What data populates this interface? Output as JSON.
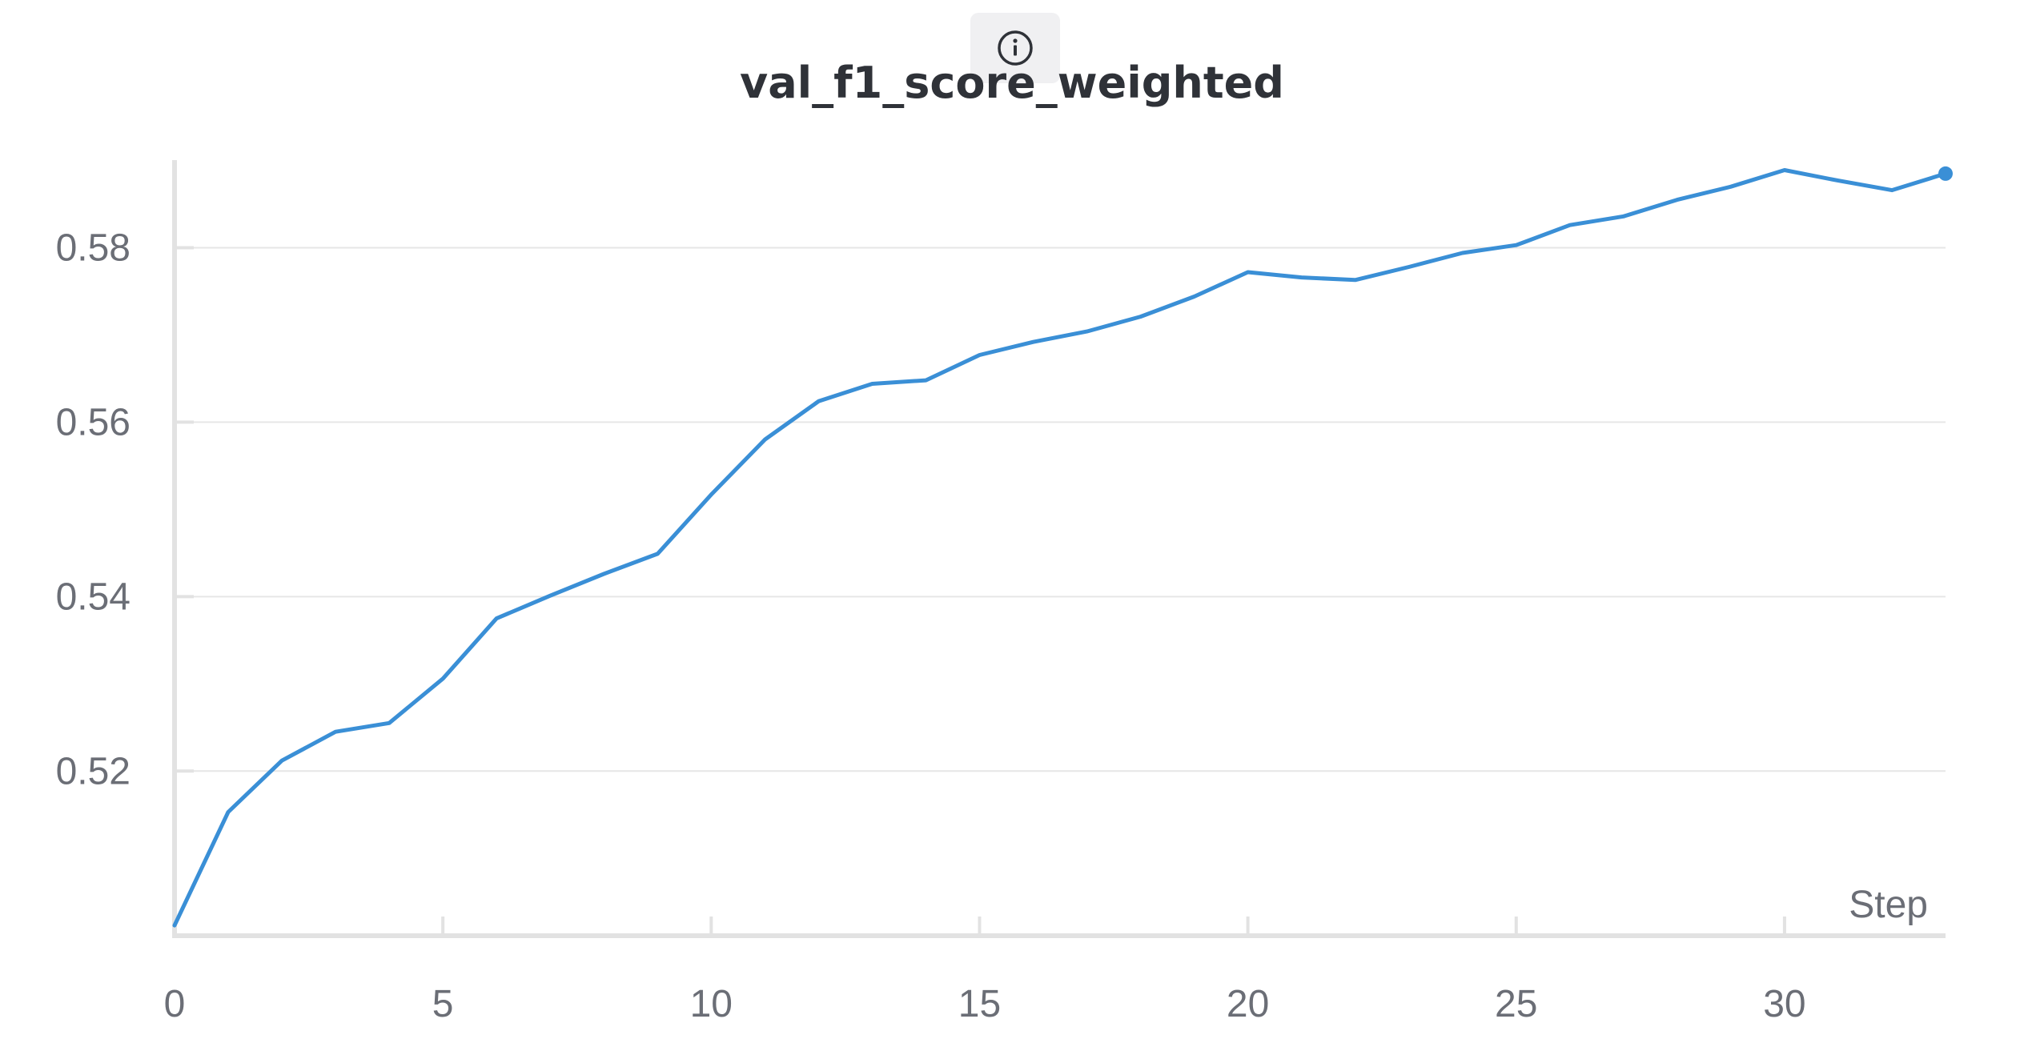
{
  "header": {
    "info_icon": "info-circle-icon"
  },
  "chart_data": {
    "type": "line",
    "title": "val_f1_score_weighted",
    "xlabel": "Step",
    "ylabel": "",
    "xlim": [
      0,
      33
    ],
    "ylim": [
      0.5013,
      0.5895
    ],
    "grid": true,
    "x_ticks": [
      0,
      5,
      10,
      15,
      20,
      25,
      30
    ],
    "y_ticks": [
      0.52,
      0.54,
      0.56,
      0.58
    ],
    "y_tick_labels": [
      "0.52",
      "0.54",
      "0.56",
      "0.58"
    ],
    "x_tick_labels": [
      "0",
      "5",
      "10",
      "15",
      "20",
      "25",
      "30"
    ],
    "colors": {
      "line": "#3a8fd6",
      "grid": "#e6e6e6",
      "axis": "#e2e2e2",
      "tick_text": "#6b6e76",
      "title": "#2f3238"
    },
    "series": [
      {
        "x": [
          0,
          1,
          2,
          3,
          4,
          5,
          6,
          7,
          8,
          9,
          10,
          11,
          12,
          13,
          14,
          15,
          16,
          17,
          18,
          19,
          20,
          21,
          22,
          23,
          24,
          25,
          26,
          27,
          28,
          29,
          30,
          31,
          32,
          33
        ],
        "values": [
          0.5023,
          0.5153,
          0.5212,
          0.5245,
          0.5255,
          0.5306,
          0.5375,
          0.5401,
          0.5426,
          0.5449,
          0.5517,
          0.558,
          0.5624,
          0.5644,
          0.5648,
          0.5677,
          0.5692,
          0.5704,
          0.5721,
          0.5744,
          0.5772,
          0.5766,
          0.5763,
          0.5778,
          0.5794,
          0.5803,
          0.5826,
          0.5836,
          0.5855,
          0.587,
          0.5889,
          0.5877,
          0.5866,
          0.5885
        ]
      }
    ]
  }
}
